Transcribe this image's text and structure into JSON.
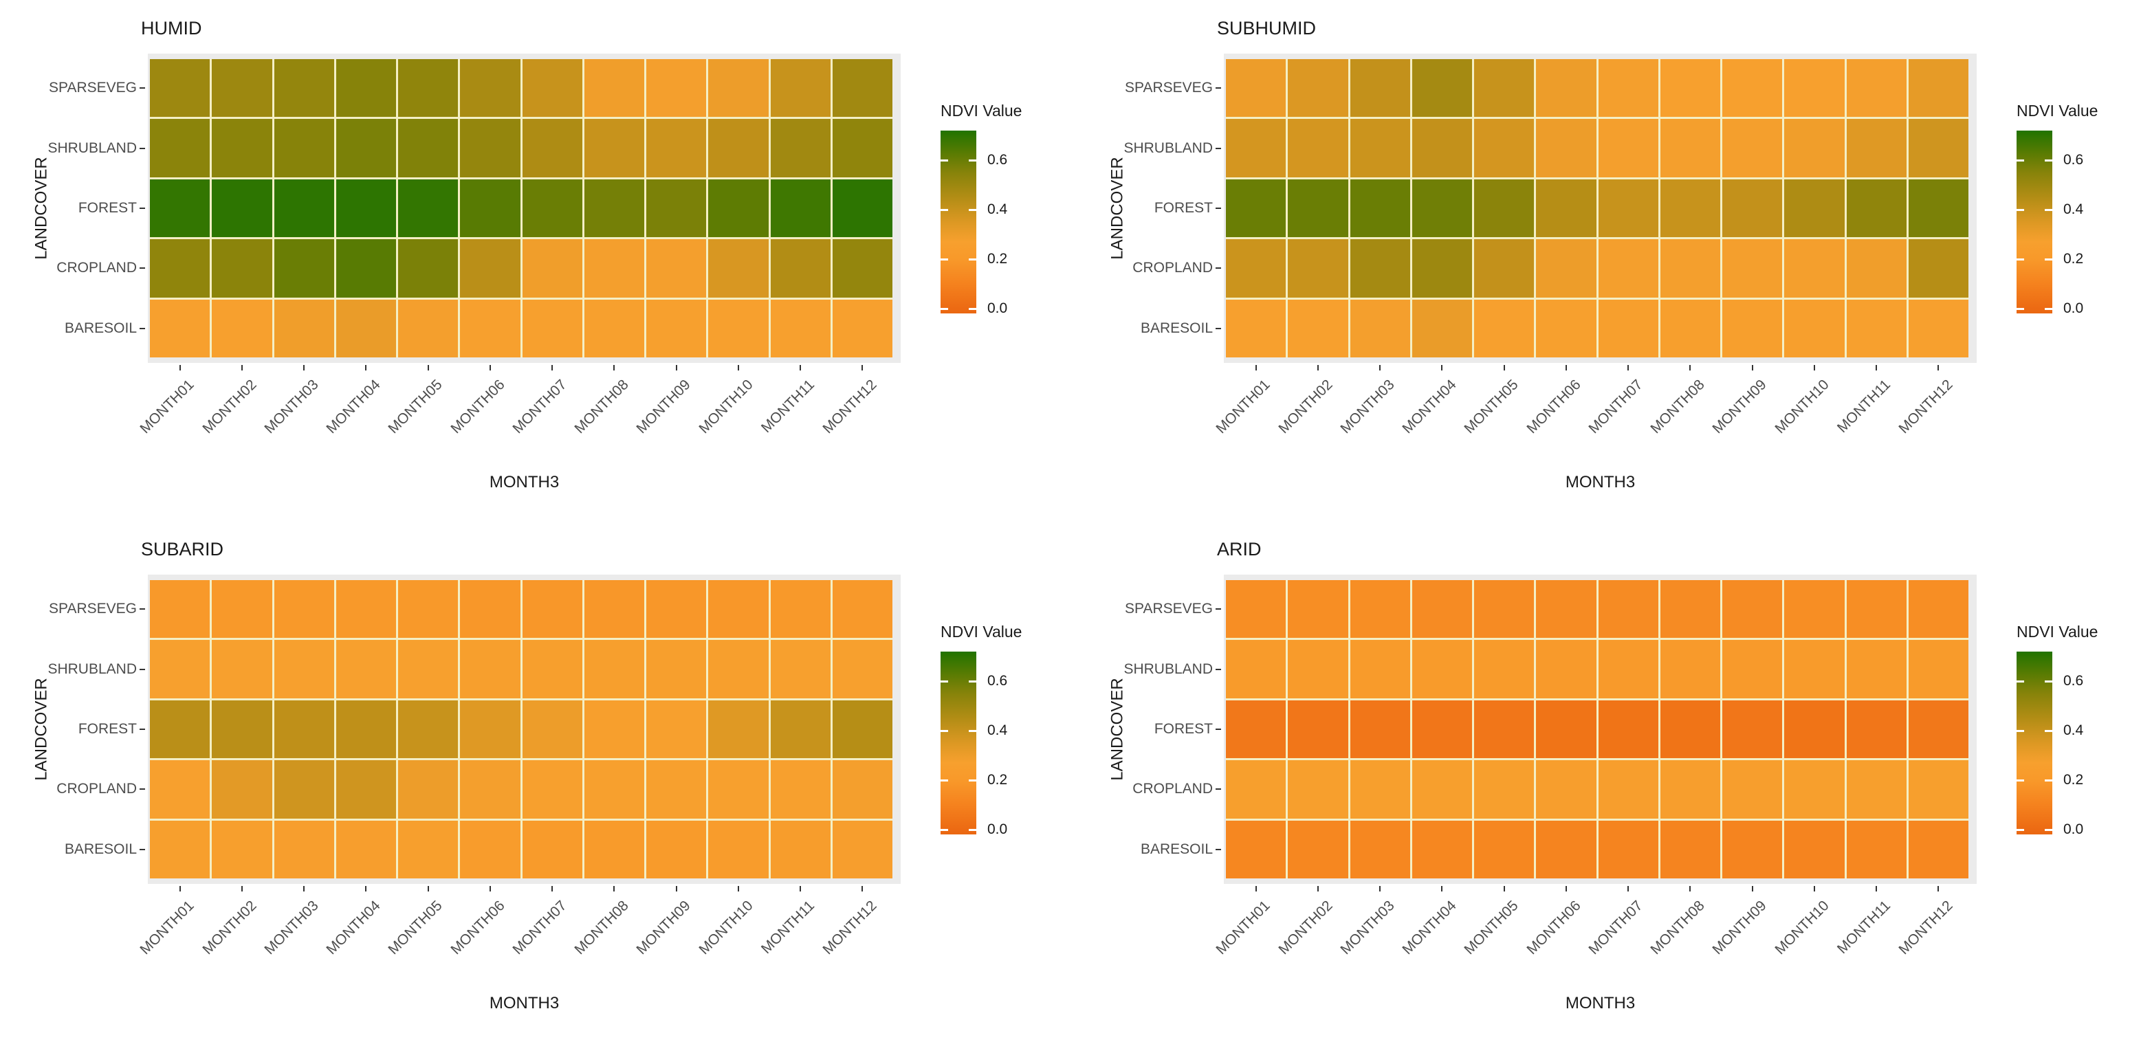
{
  "figure": {
    "y_axis_title": "LANDCOVER",
    "x_axis_title": "MONTH3",
    "legend_title": "NDVI Value",
    "legend_ticks": [
      {
        "label": "0.6",
        "value": 0.6
      },
      {
        "label": "0.4",
        "value": 0.4
      },
      {
        "label": "0.2",
        "value": 0.2
      },
      {
        "label": "0.0",
        "value": 0.0
      }
    ],
    "legend_domain": [
      -0.02,
      0.72
    ],
    "gradient_stops": [
      [
        -0.02,
        "#EA6812"
      ],
      [
        0.0,
        "#EC6A13"
      ],
      [
        0.1,
        "#F5821E"
      ],
      [
        0.2,
        "#F8992A"
      ],
      [
        0.27,
        "#F7A02E"
      ],
      [
        0.35,
        "#DC9823"
      ],
      [
        0.45,
        "#B28D15"
      ],
      [
        0.55,
        "#87830A"
      ],
      [
        0.62,
        "#5E7C03"
      ],
      [
        0.72,
        "#217300"
      ]
    ],
    "panel_bg": "#EBEBEB",
    "tile_gap_color": "#F4EFC5",
    "axis_text_color": "#4D4D4D"
  },
  "chart_data": [
    {
      "type": "heatmap",
      "title": "HUMID",
      "xlabel": "MONTH3",
      "ylabel": "LANDCOVER",
      "legend": "NDVI Value",
      "categories_x": [
        "MONTH01",
        "MONTH02",
        "MONTH03",
        "MONTH04",
        "MONTH05",
        "MONTH06",
        "MONTH07",
        "MONTH08",
        "MONTH09",
        "MONTH10",
        "MONTH11",
        "MONTH12"
      ],
      "rows": [
        {
          "name": "SPARSEVEG",
          "values": [
            0.5,
            0.5,
            0.52,
            0.55,
            0.53,
            0.47,
            0.4,
            0.29,
            0.28,
            0.3,
            0.4,
            0.49
          ]
        },
        {
          "name": "SHRUBLAND",
          "values": [
            0.54,
            0.54,
            0.55,
            0.57,
            0.56,
            0.52,
            0.46,
            0.4,
            0.39,
            0.42,
            0.49,
            0.53
          ]
        },
        {
          "name": "FOREST",
          "values": [
            0.69,
            0.7,
            0.7,
            0.7,
            0.69,
            0.63,
            0.6,
            0.58,
            0.57,
            0.62,
            0.67,
            0.7
          ]
        },
        {
          "name": "CROPLAND",
          "values": [
            0.53,
            0.54,
            0.6,
            0.63,
            0.57,
            0.43,
            0.29,
            0.28,
            0.28,
            0.36,
            0.45,
            0.52
          ]
        },
        {
          "name": "BARESOIL",
          "values": [
            0.27,
            0.27,
            0.29,
            0.31,
            0.28,
            0.27,
            0.27,
            0.27,
            0.27,
            0.27,
            0.27,
            0.27
          ]
        }
      ]
    },
    {
      "type": "heatmap",
      "title": "SUBHUMID",
      "xlabel": "MONTH3",
      "ylabel": "LANDCOVER",
      "legend": "NDVI Value",
      "categories_x": [
        "MONTH01",
        "MONTH02",
        "MONTH03",
        "MONTH04",
        "MONTH05",
        "MONTH06",
        "MONTH07",
        "MONTH08",
        "MONTH09",
        "MONTH10",
        "MONTH11",
        "MONTH12"
      ],
      "rows": [
        {
          "name": "SPARSEVEG",
          "values": [
            0.3,
            0.35,
            0.41,
            0.48,
            0.4,
            0.3,
            0.28,
            0.27,
            0.27,
            0.27,
            0.28,
            0.32
          ]
        },
        {
          "name": "SHRUBLAND",
          "values": [
            0.37,
            0.37,
            0.39,
            0.41,
            0.37,
            0.3,
            0.28,
            0.28,
            0.28,
            0.29,
            0.34,
            0.38
          ]
        },
        {
          "name": "FOREST",
          "values": [
            0.6,
            0.6,
            0.6,
            0.59,
            0.54,
            0.44,
            0.4,
            0.4,
            0.41,
            0.46,
            0.53,
            0.57
          ]
        },
        {
          "name": "CROPLAND",
          "values": [
            0.39,
            0.4,
            0.48,
            0.5,
            0.41,
            0.3,
            0.28,
            0.28,
            0.28,
            0.28,
            0.29,
            0.44
          ]
        },
        {
          "name": "BARESOIL",
          "values": [
            0.27,
            0.27,
            0.28,
            0.31,
            0.27,
            0.27,
            0.26,
            0.26,
            0.26,
            0.26,
            0.27,
            0.27
          ]
        }
      ]
    },
    {
      "type": "heatmap",
      "title": "SUBARID",
      "xlabel": "MONTH3",
      "ylabel": "LANDCOVER",
      "legend": "NDVI Value",
      "categories_x": [
        "MONTH01",
        "MONTH02",
        "MONTH03",
        "MONTH04",
        "MONTH05",
        "MONTH06",
        "MONTH07",
        "MONTH08",
        "MONTH09",
        "MONTH10",
        "MONTH11",
        "MONTH12"
      ],
      "rows": [
        {
          "name": "SPARSEVEG",
          "values": [
            0.2,
            0.2,
            0.2,
            0.2,
            0.2,
            0.19,
            0.19,
            0.19,
            0.19,
            0.19,
            0.2,
            0.2
          ]
        },
        {
          "name": "SHRUBLAND",
          "values": [
            0.27,
            0.27,
            0.27,
            0.27,
            0.27,
            0.26,
            0.26,
            0.26,
            0.26,
            0.26,
            0.27,
            0.27
          ]
        },
        {
          "name": "FOREST",
          "values": [
            0.43,
            0.43,
            0.42,
            0.42,
            0.4,
            0.34,
            0.3,
            0.26,
            0.27,
            0.34,
            0.4,
            0.44
          ]
        },
        {
          "name": "CROPLAND",
          "values": [
            0.27,
            0.33,
            0.38,
            0.38,
            0.3,
            0.28,
            0.27,
            0.27,
            0.27,
            0.27,
            0.27,
            0.28
          ]
        },
        {
          "name": "BARESOIL",
          "values": [
            0.26,
            0.26,
            0.25,
            0.25,
            0.26,
            0.23,
            0.22,
            0.22,
            0.22,
            0.23,
            0.24,
            0.25
          ]
        }
      ]
    },
    {
      "type": "heatmap",
      "title": "ARID",
      "xlabel": "MONTH3",
      "ylabel": "LANDCOVER",
      "legend": "NDVI Value",
      "categories_x": [
        "MONTH01",
        "MONTH02",
        "MONTH03",
        "MONTH04",
        "MONTH05",
        "MONTH06",
        "MONTH07",
        "MONTH08",
        "MONTH09",
        "MONTH10",
        "MONTH11",
        "MONTH12"
      ],
      "rows": [
        {
          "name": "SPARSEVEG",
          "values": [
            0.15,
            0.15,
            0.15,
            0.14,
            0.14,
            0.14,
            0.14,
            0.14,
            0.14,
            0.15,
            0.15,
            0.15
          ]
        },
        {
          "name": "SHRUBLAND",
          "values": [
            0.22,
            0.22,
            0.22,
            0.22,
            0.22,
            0.21,
            0.21,
            0.21,
            0.21,
            0.22,
            0.22,
            0.22
          ]
        },
        {
          "name": "FOREST",
          "values": [
            0.06,
            0.05,
            0.05,
            0.05,
            0.05,
            0.04,
            0.04,
            0.04,
            0.05,
            0.04,
            0.05,
            0.06
          ]
        },
        {
          "name": "CROPLAND",
          "values": [
            0.26,
            0.26,
            0.26,
            0.26,
            0.26,
            0.25,
            0.25,
            0.25,
            0.25,
            0.26,
            0.26,
            0.26
          ]
        },
        {
          "name": "BARESOIL",
          "values": [
            0.12,
            0.12,
            0.12,
            0.12,
            0.12,
            0.11,
            0.11,
            0.11,
            0.11,
            0.11,
            0.12,
            0.12
          ]
        }
      ]
    }
  ]
}
